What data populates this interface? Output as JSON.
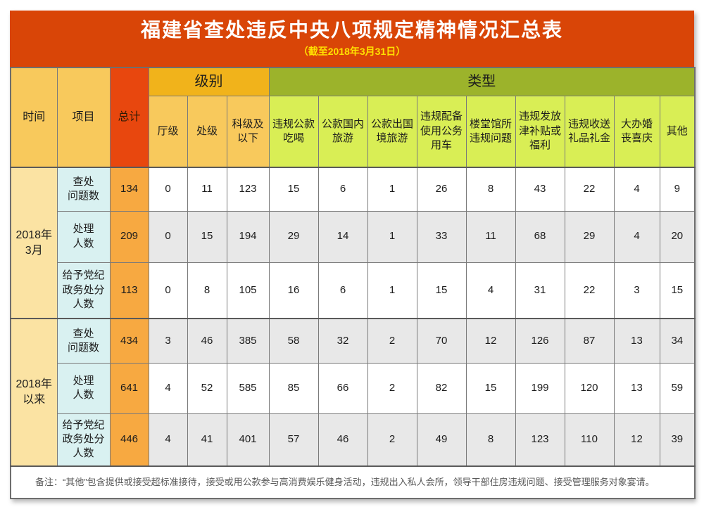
{
  "colors": {
    "title_bar": "#d94507",
    "title_text": "#ffffff",
    "subtitle_text": "#ffe100",
    "total_header_bg": "#e8470e",
    "level_header_bg": "#f1b31b",
    "type_header_bg": "#9cb32b",
    "amber_subheader_bg": "#f8c95c",
    "green_subheader_bg": "#d9ee55",
    "time_column_bg": "#fbe3a3",
    "item_column_bg": "#d9f1f1",
    "total_column_bg": "#f7a941",
    "stripe_row_bg": "#e8e8e8",
    "note_text": "#595959"
  },
  "chart_data": {
    "type": "table",
    "title": "福建省查处违反中央八项规定精神情况汇总表",
    "subtitle": "（截至2018年3月31日）",
    "corner": {
      "time": "时间",
      "item": "项目",
      "total": "总计"
    },
    "group_headers": {
      "level": "级别",
      "type": "类型"
    },
    "level_columns": [
      "厅级",
      "处级",
      "科级及以下"
    ],
    "type_columns": [
      "违规公款吃喝",
      "公款国内旅游",
      "公款出国境旅游",
      "违规配备使用公务用车",
      "楼堂馆所违规问题",
      "违规发放津补贴或福利",
      "违规收送礼品礼金",
      "大办婚丧喜庆",
      "其他"
    ],
    "row_groups": [
      {
        "time": "2018年3月",
        "time_lines": [
          "2018年",
          "3月"
        ],
        "rows": [
          {
            "label": "查处问题数",
            "lines": [
              "查处",
              "问题数"
            ],
            "total": 134,
            "values": [
              0,
              11,
              123,
              15,
              6,
              1,
              26,
              8,
              43,
              22,
              4,
              9
            ]
          },
          {
            "label": "处理人数",
            "lines": [
              "处理",
              "人数"
            ],
            "total": 209,
            "values": [
              0,
              15,
              194,
              29,
              14,
              1,
              33,
              11,
              68,
              29,
              4,
              20
            ]
          },
          {
            "label": "给予党纪政务处分人数",
            "lines": [
              "给予党纪",
              "政务处分",
              "人数"
            ],
            "total": 113,
            "values": [
              0,
              8,
              105,
              16,
              6,
              1,
              15,
              4,
              31,
              22,
              3,
              15
            ]
          }
        ]
      },
      {
        "time": "2018年以来",
        "time_lines": [
          "2018年",
          "以来"
        ],
        "rows": [
          {
            "label": "查处问题数",
            "lines": [
              "查处",
              "问题数"
            ],
            "total": 434,
            "values": [
              3,
              46,
              385,
              58,
              32,
              2,
              70,
              12,
              126,
              87,
              13,
              34
            ]
          },
          {
            "label": "处理人数",
            "lines": [
              "处理",
              "人数"
            ],
            "total": 641,
            "values": [
              4,
              52,
              585,
              85,
              66,
              2,
              82,
              15,
              199,
              120,
              13,
              59
            ]
          },
          {
            "label": "给予党纪政务处分人数",
            "lines": [
              "给予党纪",
              "政务处分",
              "人数"
            ],
            "total": 446,
            "values": [
              4,
              41,
              401,
              57,
              46,
              2,
              49,
              8,
              123,
              110,
              12,
              39
            ]
          }
        ]
      }
    ],
    "note": "备注：“其他”包含提供或接受超标准接待，接受或用公款参与高消费娱乐健身活动，违规出入私人会所，领导干部住房违规问题、接受管理服务对象宴请。"
  }
}
